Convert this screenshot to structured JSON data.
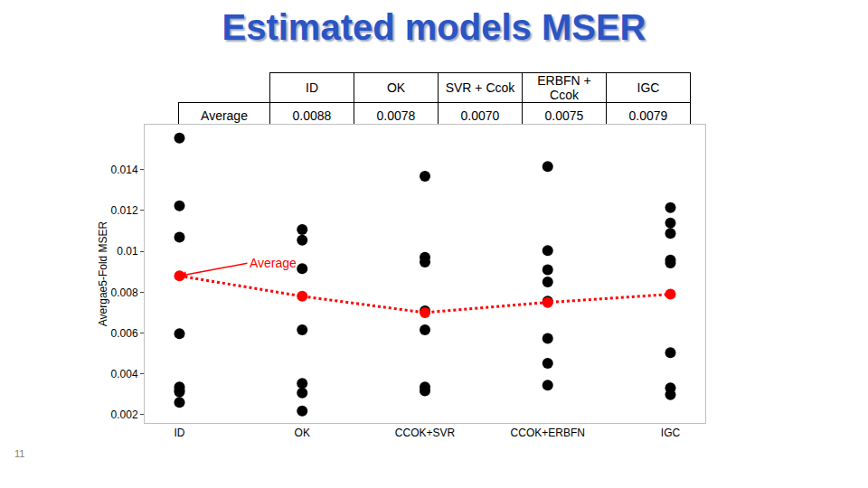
{
  "title": "Estimated models MSER",
  "page_number": "11",
  "table": {
    "header": [
      "ID",
      "OK",
      "SVR + Ccok",
      "ERBFN + Ccok",
      "IGC"
    ],
    "rows": [
      [
        "Average",
        "0.0088",
        "0.0078",
        "0.0070",
        "0.0075",
        "0.0079"
      ]
    ]
  },
  "chart_data": {
    "type": "scatter",
    "y_label": "Avergae5-Fold MSER",
    "categories": [
      "ID",
      "OK",
      "CCOK+SVR",
      "CCOK+ERBFN",
      "IGC"
    ],
    "series": [
      {
        "color": "#000000",
        "marker": "circle",
        "values": [
          [
            0.01555,
            0.01223,
            0.01069,
            0.00597,
            0.00336,
            0.00322,
            0.00312,
            0.00261
          ],
          [
            0.01107,
            0.01055,
            0.00915,
            0.00616,
            0.00354,
            0.00307,
            0.00219
          ],
          [
            0.01368,
            0.00971,
            0.00948,
            0.00709,
            0.00616,
            0.00336,
            0.00317
          ],
          [
            0.01415,
            0.01004,
            0.0091,
            0.0085,
            0.00756,
            0.00574,
            0.00452,
            0.00345
          ],
          [
            0.01214,
            0.01139,
            0.01088,
            0.00957,
            0.00943,
            0.00504,
            0.00331,
            0.00298
          ]
        ]
      },
      {
        "name": "Average",
        "color": "#ff0000",
        "marker": "circle",
        "line_style": "dot",
        "values": [
          0.0088,
          0.0078,
          0.007,
          0.0075,
          0.0079
        ]
      }
    ],
    "ylim": [
      0.0016,
      0.0162
    ],
    "yticks": [
      0.002,
      0.004,
      0.006,
      0.008,
      0.01,
      0.012,
      0.014
    ],
    "grid": false
  }
}
